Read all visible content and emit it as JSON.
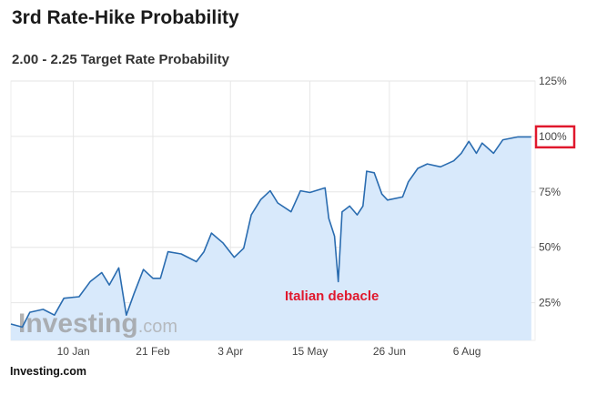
{
  "header": {
    "title": "3rd Rate-Hike Probability",
    "subtitle": "2.00 - 2.25 Target Rate Probability"
  },
  "source": "Investing.com",
  "watermark": {
    "main": "Investing",
    "suffix": ".com"
  },
  "colors": {
    "line": "#2a6cb0",
    "fill": "#d8e9fb",
    "highlight": "#e0182d",
    "grid": "#e6e6e6"
  },
  "chart_data": {
    "type": "area",
    "title": "2.00 - 2.25 Target Rate Probability",
    "xlabel": "",
    "ylabel": "",
    "xlim": [
      "2017-12-08",
      "2018-09-11"
    ],
    "ylim": [
      8,
      125
    ],
    "grid": true,
    "y_axis_side": "right",
    "x_ticks": [
      {
        "date": "2018-01-10",
        "label": "10 Jan"
      },
      {
        "date": "2018-02-21",
        "label": "21 Feb"
      },
      {
        "date": "2018-04-03",
        "label": "3 Apr"
      },
      {
        "date": "2018-05-15",
        "label": "15 May"
      },
      {
        "date": "2018-06-26",
        "label": "26 Jun"
      },
      {
        "date": "2018-08-06",
        "label": "6 Aug"
      }
    ],
    "y_ticks": [
      {
        "value": 25,
        "label": "25%"
      },
      {
        "value": 50,
        "label": "50%"
      },
      {
        "value": 75,
        "label": "75%"
      },
      {
        "value": 100,
        "label": "100%",
        "highlighted": true
      },
      {
        "value": 125,
        "label": "125%"
      }
    ],
    "annotation": {
      "text": "Italian debacle",
      "date": "2018-05-30",
      "value": 34.5
    },
    "series": [
      {
        "x": [
          "2017-12-08",
          "2017-12-14",
          "2017-12-18",
          "2017-12-25",
          "2017-12-31",
          "2018-01-05",
          "2018-01-13",
          "2018-01-19",
          "2018-01-25",
          "2018-01-29",
          "2018-02-03",
          "2018-02-07",
          "2018-02-11",
          "2018-02-16",
          "2018-02-21",
          "2018-02-25",
          "2018-03-01",
          "2018-03-08",
          "2018-03-16",
          "2018-03-20",
          "2018-03-24",
          "2018-03-30",
          "2018-04-05",
          "2018-04-10",
          "2018-04-14",
          "2018-04-19",
          "2018-04-24",
          "2018-04-28",
          "2018-05-05",
          "2018-05-10",
          "2018-05-15",
          "2018-05-23",
          "2018-05-25",
          "2018-05-28",
          "2018-05-30",
          "2018-06-01",
          "2018-06-05",
          "2018-06-09",
          "2018-06-12",
          "2018-06-14",
          "2018-06-18",
          "2018-06-22",
          "2018-06-25",
          "2018-07-03",
          "2018-07-06",
          "2018-07-11",
          "2018-07-16",
          "2018-07-23",
          "2018-07-30",
          "2018-08-03",
          "2018-08-07",
          "2018-08-11",
          "2018-08-14",
          "2018-08-20",
          "2018-08-25",
          "2018-09-02",
          "2018-09-09"
        ],
        "y": [
          15.4,
          14,
          20.7,
          22,
          19.4,
          27,
          27.7,
          34.6,
          38.6,
          33,
          40.7,
          19.4,
          29,
          40,
          36,
          36,
          48,
          47,
          43.5,
          48,
          56.4,
          52,
          45.5,
          49.6,
          64.6,
          71.5,
          75.5,
          70,
          66,
          75.5,
          74.7,
          76.8,
          63,
          55,
          34.5,
          66,
          68.6,
          64.6,
          68.6,
          84.3,
          83.6,
          74,
          71.3,
          72.7,
          79.5,
          85.6,
          87.6,
          86.3,
          89,
          92.4,
          97.8,
          92.4,
          97,
          92.4,
          98.5,
          99.8,
          99.8
        ]
      }
    ]
  }
}
